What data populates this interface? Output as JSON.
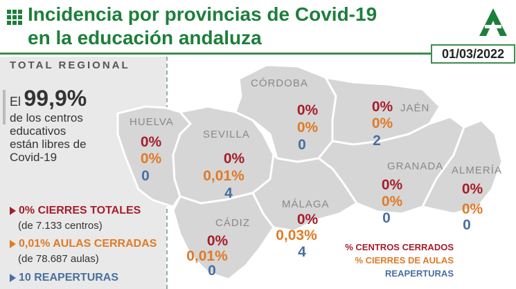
{
  "header": {
    "title_line1": "Incidencia por provincias de Covid-19",
    "title_line2": "en la educación andaluza",
    "date": "01/03/2022"
  },
  "sidebar": {
    "section_title": "TOTAL REGIONAL",
    "stat_prefix": "El",
    "stat_value": "99,9%",
    "stat_line1": "de los centros",
    "stat_line2": "educativos",
    "stat_line3": "están libres de",
    "stat_line4": "Covid-19",
    "item1_label": "0% CIERRES TOTALES",
    "item1_sub": "(de 7.133 centros)",
    "item2_label": "0,01% AULAS CERRADAS",
    "item2_sub": "(de 78.687 aulas)",
    "item3_label": "10 REAPERTURAS"
  },
  "provinces": [
    {
      "name": "HUELVA",
      "centros": "0%",
      "aulas": "0%",
      "reaperturas": "0"
    },
    {
      "name": "SEVILLA",
      "centros": "0%",
      "aulas": "0,01%",
      "reaperturas": "4"
    },
    {
      "name": "CÓRDOBA",
      "centros": "0%",
      "aulas": "0%",
      "reaperturas": "0"
    },
    {
      "name": "JAÉN",
      "centros": "0%",
      "aulas": "0%",
      "reaperturas": "2"
    },
    {
      "name": "GRANADA",
      "centros": "0%",
      "aulas": "0%",
      "reaperturas": "0"
    },
    {
      "name": "ALMERÍA",
      "centros": "0%",
      "aulas": "0%",
      "reaperturas": "0"
    },
    {
      "name": "MÁLAGA",
      "centros": "0%",
      "aulas": "0,03%",
      "reaperturas": "4"
    },
    {
      "name": "CÁDIZ",
      "centros": "0%",
      "aulas": "0,01%",
      "reaperturas": "0"
    }
  ],
  "map_legend": {
    "centros": "% CENTROS CERRADOS",
    "aulas": "% CIERRES DE AULAS",
    "reaperturas": "REAPERTURAS"
  },
  "colors": {
    "brand_green": "#1d7f3a",
    "red": "#a51d2a",
    "orange": "#e07a26",
    "blue": "#4a6fa0",
    "map_gray": "#d8d8d8"
  }
}
